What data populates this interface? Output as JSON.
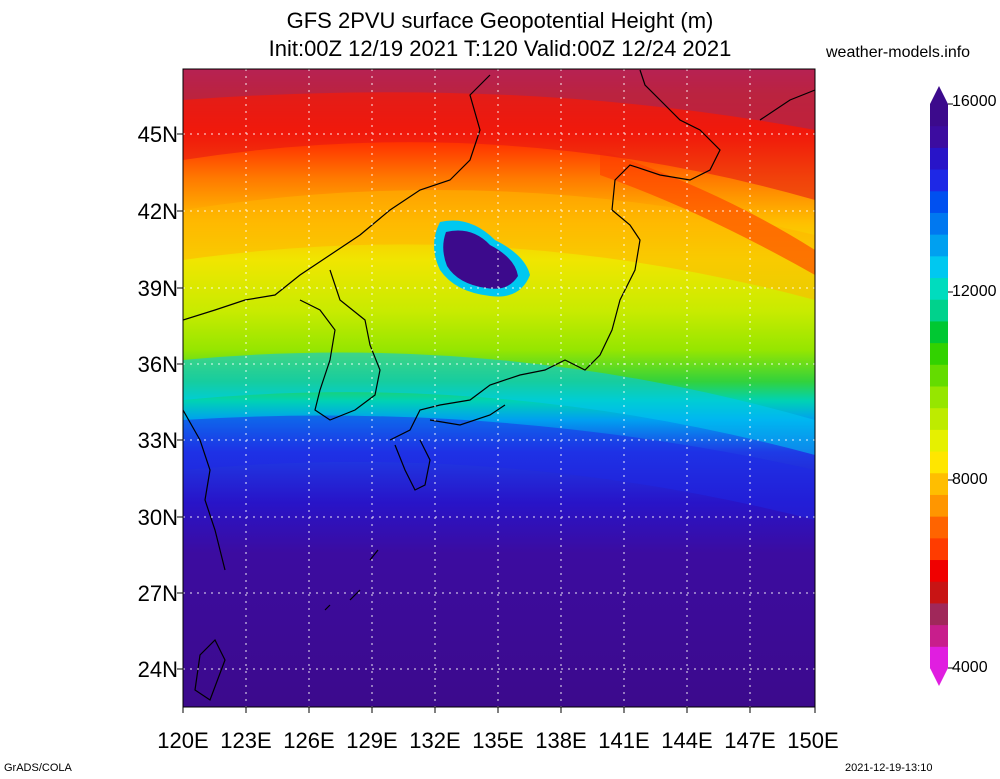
{
  "title": {
    "line1": "GFS 2PVU surface Geopotential Height (m)",
    "line2": "Init:00Z 12/19 2021 T:120 Valid:00Z 12/24 2021"
  },
  "credit": "weather-models.info",
  "map": {
    "lon_range": [
      120,
      150
    ],
    "lat_range": [
      22.5,
      47.5
    ],
    "lat_labels": [
      "45N",
      "42N",
      "39N",
      "36N",
      "33N",
      "30N",
      "27N",
      "24N"
    ],
    "lat_values": [
      45,
      42,
      39,
      36,
      33,
      30,
      27,
      24
    ],
    "lon_labels": [
      "120E",
      "123E",
      "126E",
      "129E",
      "132E",
      "135E",
      "138E",
      "141E",
      "144E",
      "147E",
      "150E"
    ],
    "lon_values": [
      120,
      123,
      126,
      129,
      132,
      135,
      138,
      141,
      144,
      147,
      150
    ]
  },
  "colorbar": {
    "labels": [
      "16000",
      "12000",
      "8000",
      "4000"
    ],
    "values": [
      16000,
      12000,
      8000,
      4000
    ],
    "range": [
      4000,
      16000
    ],
    "colors": [
      "#e01ee0",
      "#c81e8c",
      "#a0285a",
      "#c81414",
      "#f00000",
      "#ff3c00",
      "#ff6400",
      "#ff9600",
      "#ffbe00",
      "#ffe600",
      "#e6f000",
      "#beeb00",
      "#96e600",
      "#64dc00",
      "#32d200",
      "#00c832",
      "#00d28c",
      "#00dcbe",
      "#00c8f0",
      "#00a0f0",
      "#0078f0",
      "#0050f0",
      "#1e28e6",
      "#2814c8",
      "#3c0ca0",
      "#3c0a8c"
    ]
  },
  "footer": {
    "left": "GrADS/COLA",
    "right": "2021-12-19-13:10"
  }
}
